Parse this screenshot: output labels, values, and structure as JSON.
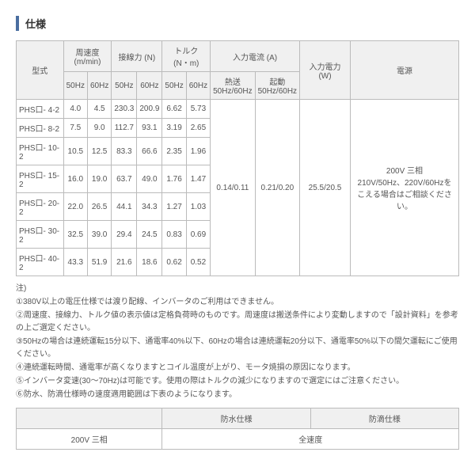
{
  "title": "仕様",
  "headers": {
    "model": "型式",
    "speed": "周速度",
    "speed_unit": "(m/min)",
    "force": "接線力 (N)",
    "torque": "トルク",
    "torque_unit": "(N・m)",
    "current": "入力電流 (A)",
    "power": "入力電力 (W)",
    "supply": "電源",
    "hz50": "50Hz",
    "hz60": "60Hz",
    "stable": "熱送",
    "start": "起動",
    "hz5060": "50Hz/60Hz"
  },
  "rows": [
    {
      "model": "PHS口- 4-2",
      "s50": "4.0",
      "s60": "4.5",
      "f50": "230.3",
      "f60": "200.9",
      "t50": "6.62",
      "t60": "5.73"
    },
    {
      "model": "PHS口- 8-2",
      "s50": "7.5",
      "s60": "9.0",
      "f50": "112.7",
      "f60": "93.1",
      "t50": "3.19",
      "t60": "2.65"
    },
    {
      "model": "PHS口- 10-2",
      "s50": "10.5",
      "s60": "12.5",
      "f50": "83.3",
      "f60": "66.6",
      "t50": "2.35",
      "t60": "1.96"
    },
    {
      "model": "PHS口- 15-2",
      "s50": "16.0",
      "s60": "19.0",
      "f50": "63.7",
      "f60": "49.0",
      "t50": "1.76",
      "t60": "1.47"
    },
    {
      "model": "PHS口- 20-2",
      "s50": "22.0",
      "s60": "26.5",
      "f50": "44.1",
      "f60": "34.3",
      "t50": "1.27",
      "t60": "1.03"
    },
    {
      "model": "PHS口- 30-2",
      "s50": "32.5",
      "s60": "39.0",
      "f50": "29.4",
      "f60": "24.5",
      "t50": "0.83",
      "t60": "0.69"
    },
    {
      "model": "PHS口- 40-2",
      "s50": "43.3",
      "s60": "51.9",
      "f50": "21.6",
      "f60": "18.6",
      "t50": "0.62",
      "t60": "0.52"
    }
  ],
  "merged": {
    "current_stable": "0.14/0.11",
    "current_start": "0.21/0.20",
    "power": "25.5/20.5",
    "supply": "200V 三相\n210V/50Hz、220V/60Hzを\nこえる場合はご相談ください。"
  },
  "notes_header": "注)",
  "notes": [
    "①380V以上の電圧仕様では渡り配線、インバータのご利用はできません。",
    "②周速度、接線力、トルク値の表示値は定格負荷時のものです。周速度は搬送条件により変動しますので「設計資料」を参考の上ご選定ください。",
    "③50Hzの場合は連続運転15分以下、通電率40%以下、60Hzの場合は連続運転20分以下、通電率50%以下の間欠運転にご使用ください。",
    "④連続運転時間、通電率が高くなりますとコイル温度が上がり、モータ焼損の原因になります。",
    "⑤インバータ変速(30～70Hz)は可能です。使用の際はトルクの減少になりますので選定にはご注意ください。",
    "⑥防水、防滴仕様時の速度適用範囲は下表のようになります。"
  ],
  "table2": {
    "h1": "防水仕様",
    "h2": "防滴仕様",
    "label": "200V 三相",
    "val": "全速度"
  }
}
